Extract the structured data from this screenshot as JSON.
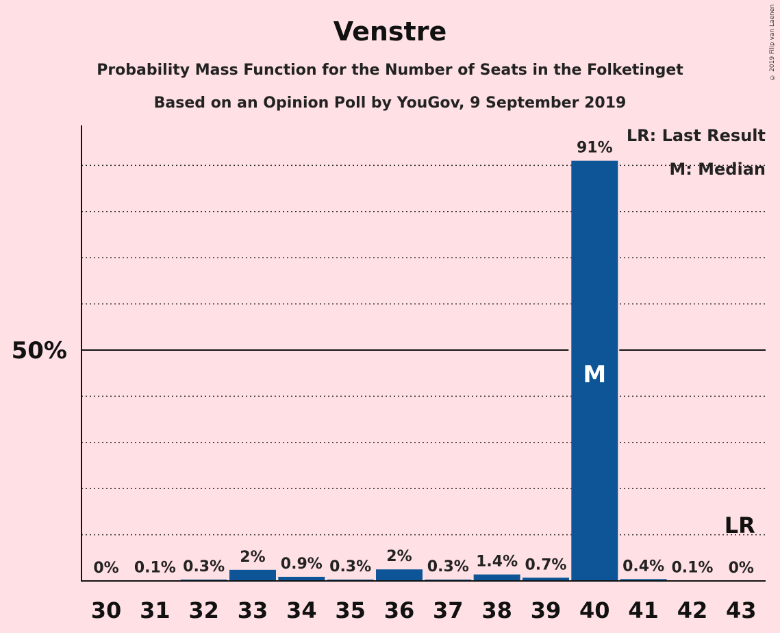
{
  "header": {
    "title": "Venstre",
    "subtitle1": "Probability Mass Function for the Number of Seats in the Folketinget",
    "subtitle2": "Based on an Opinion Poll by YouGov, 9 September 2019"
  },
  "copyright": "© 2019 Filip van Laenen",
  "legend": {
    "lr": "LR: Last Result",
    "median": "M: Median"
  },
  "colors": {
    "background": "#ffe1e5",
    "bar": "#0d5596",
    "text": "#1a1a1a"
  },
  "chart_data": {
    "type": "bar",
    "categories": [
      "30",
      "31",
      "32",
      "33",
      "34",
      "35",
      "36",
      "37",
      "38",
      "39",
      "40",
      "41",
      "42",
      "43"
    ],
    "values": [
      0,
      0.1,
      0.3,
      2.4,
      0.9,
      0.3,
      2.5,
      0.3,
      1.4,
      0.7,
      91,
      0.4,
      0.1,
      0
    ],
    "labels": [
      "0%",
      "0.1%",
      "0.3%",
      "2%",
      "0.9%",
      "0.3%",
      "2%",
      "0.3%",
      "1.4%",
      "0.7%",
      "91%",
      "0.4%",
      "0.1%",
      "0%"
    ],
    "ylim": [
      0,
      100
    ],
    "ytick_label": "50%",
    "ytick_value": 50,
    "gridlines": [
      10,
      20,
      30,
      40,
      60,
      70,
      80,
      90
    ],
    "median_category": "40",
    "median_marker": "M",
    "last_result_category": "43",
    "last_result_marker": "LR"
  }
}
